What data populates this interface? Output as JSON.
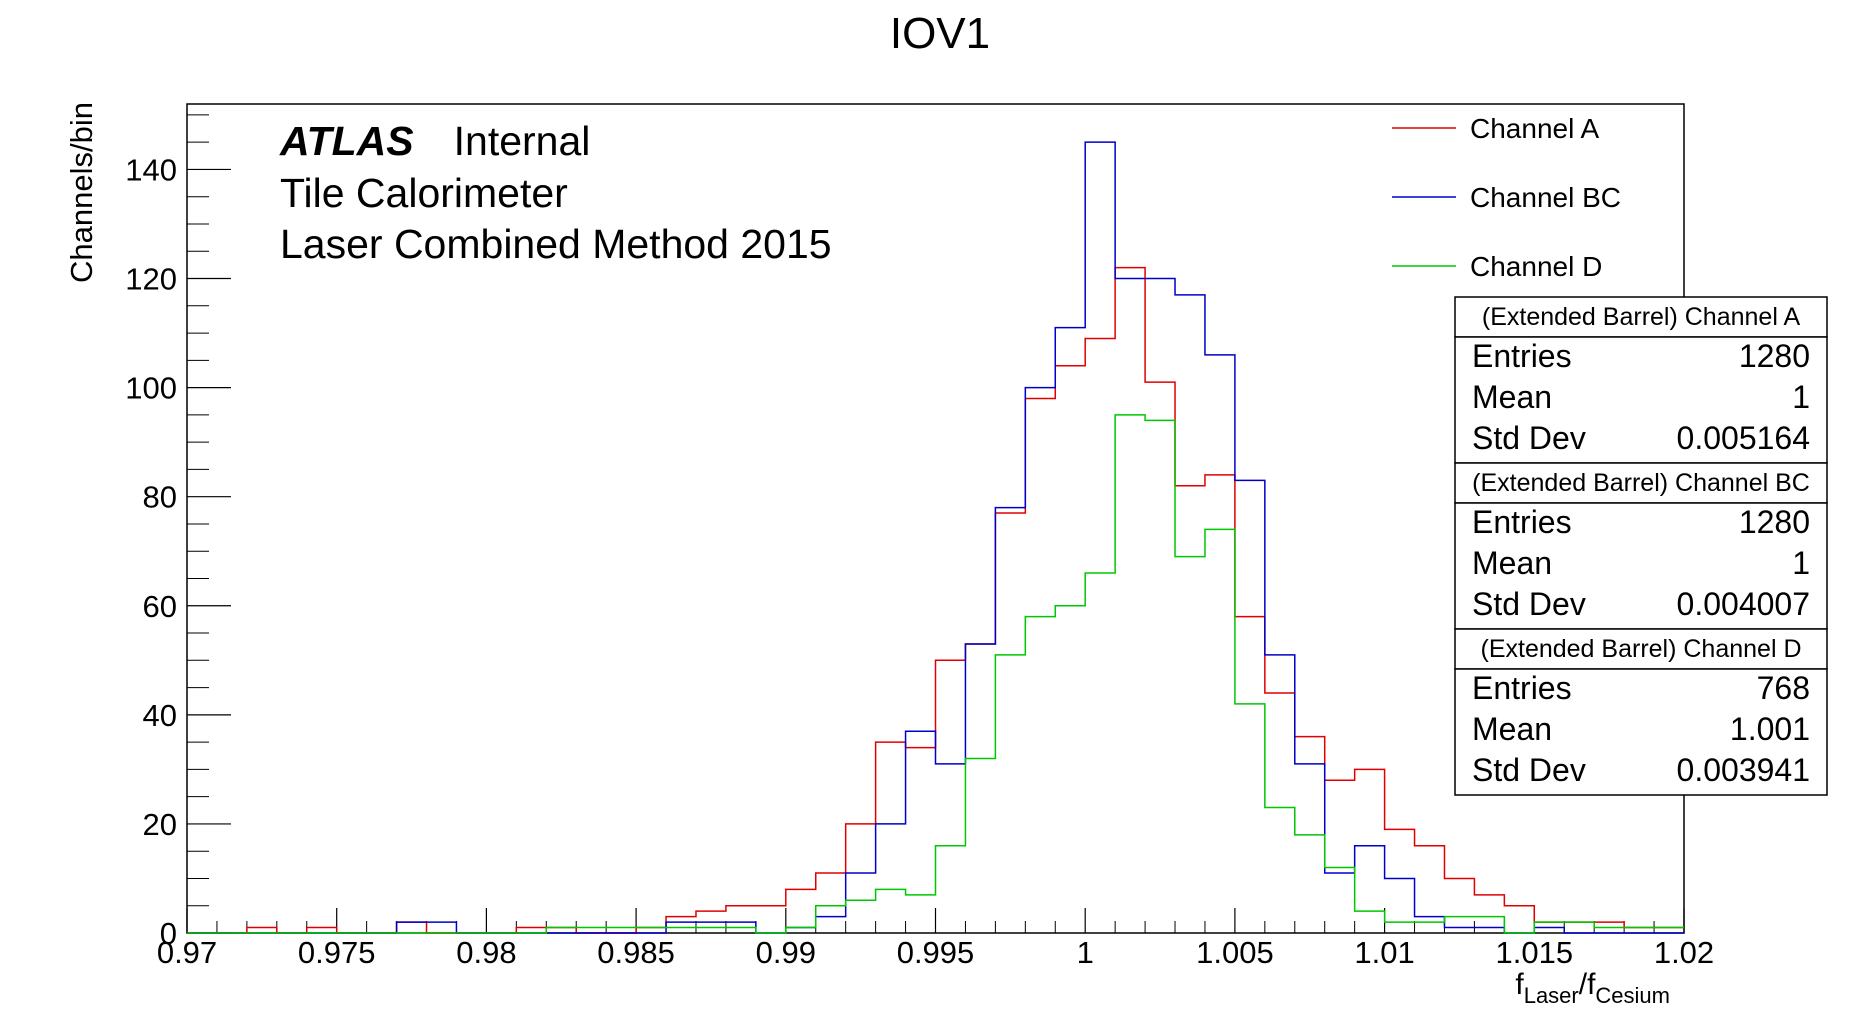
{
  "chart_data": {
    "type": "histogram",
    "title": "IOV1",
    "ylabel": "Channels/bin",
    "xlabel_main": "f",
    "xlabel_sub1": "Laser",
    "xlabel_sep": "/f",
    "xlabel_sub2": "Cesium",
    "xlim": [
      0.97,
      1.02
    ],
    "ylim": [
      0,
      152
    ],
    "bin_width": 0.001,
    "x_ticks": [
      {
        "v": 0.97,
        "label": "0.97"
      },
      {
        "v": 0.975,
        "label": "0.975"
      },
      {
        "v": 0.98,
        "label": "0.98"
      },
      {
        "v": 0.985,
        "label": "0.985"
      },
      {
        "v": 0.99,
        "label": "0.99"
      },
      {
        "v": 0.995,
        "label": "0.995"
      },
      {
        "v": 1.0,
        "label": "1"
      },
      {
        "v": 1.005,
        "label": "1.005"
      },
      {
        "v": 1.01,
        "label": "1.01"
      },
      {
        "v": 1.015,
        "label": "1.015"
      },
      {
        "v": 1.02,
        "label": "1.02"
      }
    ],
    "y_ticks": [
      {
        "v": 0,
        "label": "0"
      },
      {
        "v": 20,
        "label": "20"
      },
      {
        "v": 40,
        "label": "40"
      },
      {
        "v": 60,
        "label": "60"
      },
      {
        "v": 80,
        "label": "80"
      },
      {
        "v": 100,
        "label": "100"
      },
      {
        "v": 120,
        "label": "120"
      },
      {
        "v": 140,
        "label": "140"
      }
    ],
    "series": [
      {
        "name": "Channel A",
        "color": "#e00000",
        "values": [
          0,
          0,
          1,
          0,
          1,
          0,
          0,
          2,
          0,
          0,
          0,
          1,
          1,
          0,
          0,
          1,
          3,
          4,
          5,
          5,
          8,
          11,
          20,
          35,
          34,
          50,
          53,
          77,
          98,
          104,
          109,
          122,
          101,
          82,
          84,
          58,
          44,
          36,
          28,
          30,
          19,
          16,
          10,
          7,
          5,
          2,
          2,
          2,
          1,
          1
        ]
      },
      {
        "name": "Channel BC",
        "color": "#0000c8",
        "values": [
          0,
          0,
          0,
          0,
          0,
          0,
          0,
          2,
          2,
          0,
          0,
          0,
          0,
          0,
          0,
          0,
          2,
          2,
          2,
          0,
          1,
          3,
          11,
          20,
          37,
          31,
          53,
          78,
          100,
          111,
          145,
          120,
          120,
          117,
          106,
          83,
          51,
          31,
          11,
          16,
          10,
          3,
          1,
          1,
          0,
          1,
          0,
          0,
          0,
          0
        ]
      },
      {
        "name": "Channel D",
        "color": "#00c800",
        "values": [
          0,
          0,
          0,
          0,
          0,
          0,
          0,
          0,
          0,
          0,
          0,
          0,
          1,
          1,
          1,
          1,
          1,
          1,
          1,
          0,
          1,
          5,
          6,
          8,
          7,
          16,
          32,
          51,
          58,
          60,
          66,
          95,
          94,
          69,
          74,
          42,
          23,
          18,
          12,
          4,
          2,
          2,
          3,
          3,
          0,
          2,
          2,
          1,
          1,
          1
        ]
      }
    ]
  },
  "annotation": {
    "experiment": "ATLAS",
    "status": "Internal",
    "line2": "Tile Calorimeter",
    "line3": "Laser Combined Method 2015"
  },
  "stats_boxes": [
    {
      "title": "(Extended Barrel) Channel A",
      "rows": [
        {
          "label": "Entries",
          "value": "1280"
        },
        {
          "label": "Mean",
          "value": "1"
        },
        {
          "label": "Std Dev",
          "value": "0.005164"
        }
      ]
    },
    {
      "title": "(Extended Barrel) Channel BC",
      "rows": [
        {
          "label": "Entries",
          "value": "1280"
        },
        {
          "label": "Mean",
          "value": "1"
        },
        {
          "label": "Std Dev",
          "value": "0.004007"
        }
      ]
    },
    {
      "title": "(Extended Barrel) Channel D",
      "rows": [
        {
          "label": "Entries",
          "value": "768"
        },
        {
          "label": "Mean",
          "value": "1.001"
        },
        {
          "label": "Std Dev",
          "value": "0.003941"
        }
      ]
    }
  ]
}
